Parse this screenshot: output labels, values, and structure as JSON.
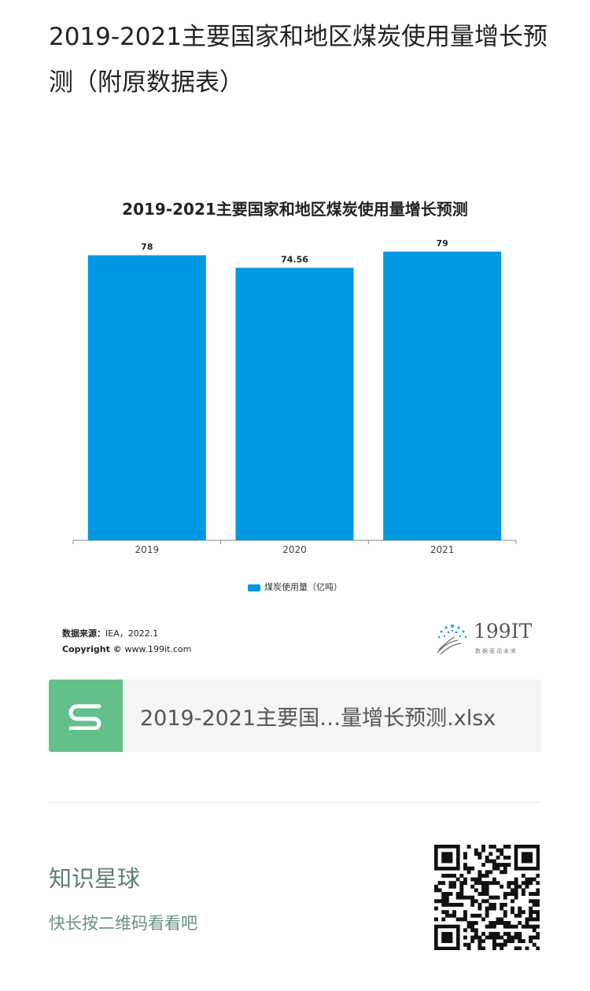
{
  "article": {
    "title": "2019-2021主要国家和地区煤炭使用量增长预测（附原数据表）"
  },
  "chart_data": {
    "type": "bar",
    "title": "2019-2021主要国家和地区煤炭使用量增长预测",
    "categories": [
      "2019",
      "2020",
      "2021"
    ],
    "series": [
      {
        "name": "煤炭使用量（亿吨）",
        "values": [
          78,
          74.56,
          79
        ],
        "labels": [
          "78",
          "74.56",
          "79"
        ]
      }
    ],
    "ylim": [
      0,
      85
    ],
    "bar_color": "#0097e3",
    "grid": false,
    "legend_position": "bottom"
  },
  "source": {
    "label": "数据来源：",
    "value": "IEA，2022.1",
    "copyright_label": "Copyright ©",
    "copyright_value": "www.199it.com"
  },
  "brand": {
    "name": "199IT",
    "tagline": "数据驱动未来"
  },
  "file_card": {
    "icon": "spreadsheet-s-icon",
    "name": "2019-2021主要国…量增长预测.xlsx",
    "icon_color": "#64c08b"
  },
  "promo": {
    "title": "知识星球",
    "subtitle": "快长按二维码看看吧",
    "qr_icon": "qr-code-icon"
  }
}
